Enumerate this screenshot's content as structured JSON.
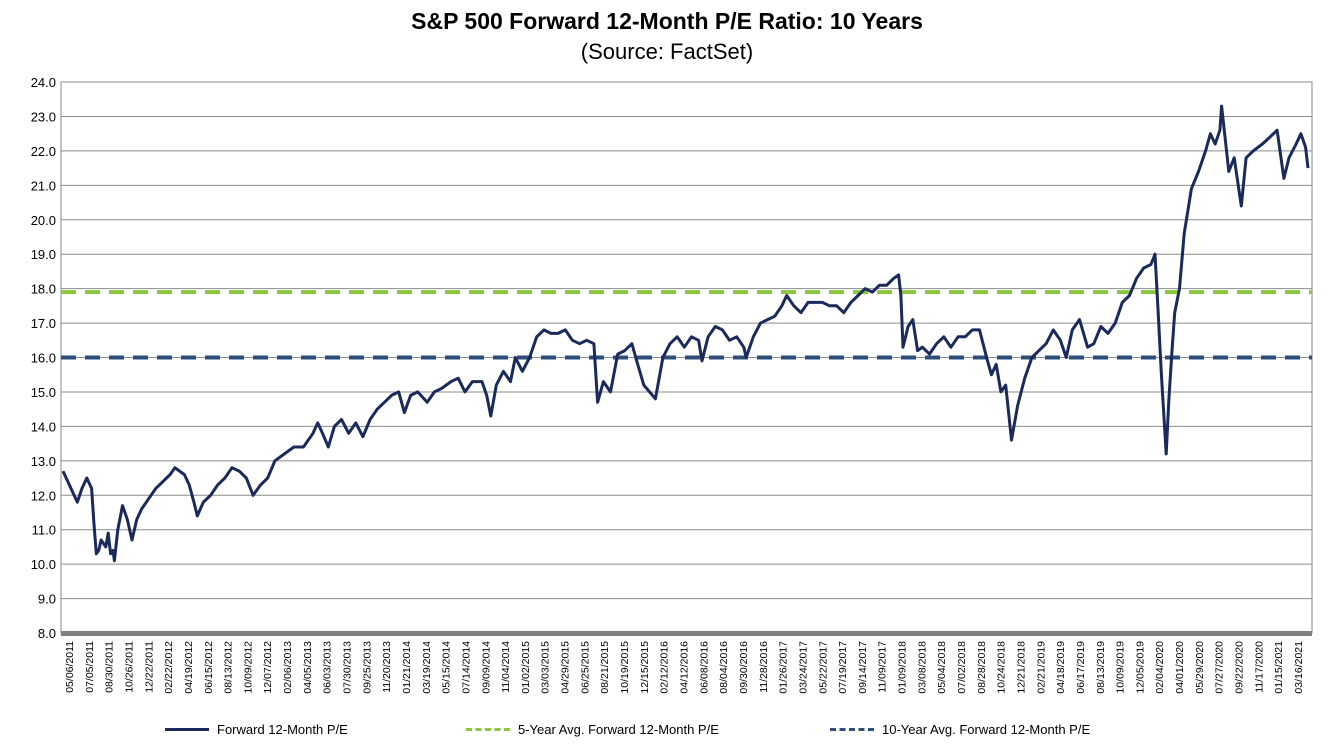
{
  "chart_data": {
    "type": "line",
    "title": "S&P 500 Forward 12-Month P/E Ratio: 10 Years",
    "subtitle": "(Source: FactSet)",
    "xlabel": "",
    "ylabel": "",
    "ylim": [
      8.0,
      24.0
    ],
    "yticks": [
      "8.0",
      "9.0",
      "10.0",
      "11.0",
      "12.0",
      "13.0",
      "14.0",
      "15.0",
      "16.0",
      "17.0",
      "18.0",
      "19.0",
      "20.0",
      "21.0",
      "22.0",
      "23.0",
      "24.0"
    ],
    "grid": true,
    "legend_position": "bottom",
    "x_tick_labels": [
      "05/06/2011",
      "07/05/2011",
      "08/30/2011",
      "10/26/2011",
      "12/22/2011",
      "02/22/2012",
      "04/19/2012",
      "06/15/2012",
      "08/13/2012",
      "10/09/2012",
      "12/07/2012",
      "02/06/2013",
      "04/05/2013",
      "06/03/2013",
      "07/30/2013",
      "09/25/2013",
      "11/20/2013",
      "01/21/2014",
      "03/19/2014",
      "05/15/2014",
      "07/14/2014",
      "09/09/2014",
      "11/04/2014",
      "01/02/2015",
      "03/03/2015",
      "04/29/2015",
      "06/25/2015",
      "08/21/2015",
      "10/19/2015",
      "12/15/2015",
      "02/12/2016",
      "04/12/2016",
      "06/08/2016",
      "08/04/2016",
      "09/30/2016",
      "11/28/2016",
      "01/26/2017",
      "03/24/2017",
      "05/22/2017",
      "07/19/2017",
      "09/14/2017",
      "11/09/2017",
      "01/09/2018",
      "03/08/2018",
      "05/04/2018",
      "07/02/2018",
      "08/28/2018",
      "10/24/2018",
      "12/21/2018",
      "02/21/2019",
      "04/18/2019",
      "06/17/2019",
      "08/13/2019",
      "10/09/2019",
      "12/05/2019",
      "02/04/2020",
      "04/01/2020",
      "05/29/2020",
      "07/27/2020",
      "09/22/2020",
      "11/17/2020",
      "01/15/2021",
      "03/16/2021"
    ],
    "series": [
      {
        "name": "Forward 12-Month P/E",
        "color": "#1a2a5a",
        "style": "solid",
        "points": [
          [
            "2011-05-06",
            12.7
          ],
          [
            "2011-05-20",
            12.4
          ],
          [
            "2011-06-03",
            12.1
          ],
          [
            "2011-06-17",
            11.8
          ],
          [
            "2011-07-01",
            12.2
          ],
          [
            "2011-07-15",
            12.5
          ],
          [
            "2011-07-29",
            12.2
          ],
          [
            "2011-08-05",
            11.2
          ],
          [
            "2011-08-12",
            10.3
          ],
          [
            "2011-08-19",
            10.4
          ],
          [
            "2011-08-26",
            10.7
          ],
          [
            "2011-09-09",
            10.5
          ],
          [
            "2011-09-16",
            10.9
          ],
          [
            "2011-09-23",
            10.3
          ],
          [
            "2011-09-30",
            10.4
          ],
          [
            "2011-10-04",
            10.1
          ],
          [
            "2011-10-14",
            11.0
          ],
          [
            "2011-10-28",
            11.7
          ],
          [
            "2011-11-11",
            11.3
          ],
          [
            "2011-11-25",
            10.7
          ],
          [
            "2011-12-09",
            11.3
          ],
          [
            "2011-12-23",
            11.6
          ],
          [
            "2012-01-13",
            11.9
          ],
          [
            "2012-02-03",
            12.2
          ],
          [
            "2012-02-24",
            12.4
          ],
          [
            "2012-03-16",
            12.6
          ],
          [
            "2012-03-30",
            12.8
          ],
          [
            "2012-04-13",
            12.7
          ],
          [
            "2012-04-27",
            12.6
          ],
          [
            "2012-05-11",
            12.3
          ],
          [
            "2012-05-25",
            11.8
          ],
          [
            "2012-06-04",
            11.4
          ],
          [
            "2012-06-22",
            11.8
          ],
          [
            "2012-07-13",
            12.0
          ],
          [
            "2012-08-03",
            12.3
          ],
          [
            "2012-08-24",
            12.5
          ],
          [
            "2012-09-14",
            12.8
          ],
          [
            "2012-10-05",
            12.7
          ],
          [
            "2012-10-26",
            12.5
          ],
          [
            "2012-11-15",
            12.0
          ],
          [
            "2012-12-07",
            12.3
          ],
          [
            "2012-12-28",
            12.5
          ],
          [
            "2013-01-18",
            13.0
          ],
          [
            "2013-02-15",
            13.2
          ],
          [
            "2013-03-15",
            13.4
          ],
          [
            "2013-04-12",
            13.4
          ],
          [
            "2013-05-10",
            13.8
          ],
          [
            "2013-05-24",
            14.1
          ],
          [
            "2013-06-07",
            13.8
          ],
          [
            "2013-06-24",
            13.4
          ],
          [
            "2013-07-12",
            14.0
          ],
          [
            "2013-08-02",
            14.2
          ],
          [
            "2013-08-23",
            13.8
          ],
          [
            "2013-09-13",
            14.1
          ],
          [
            "2013-10-04",
            13.7
          ],
          [
            "2013-10-25",
            14.2
          ],
          [
            "2013-11-15",
            14.5
          ],
          [
            "2013-12-06",
            14.7
          ],
          [
            "2013-12-27",
            14.9
          ],
          [
            "2014-01-17",
            15.0
          ],
          [
            "2014-02-03",
            14.4
          ],
          [
            "2014-02-21",
            14.9
          ],
          [
            "2014-03-14",
            15.0
          ],
          [
            "2014-04-11",
            14.7
          ],
          [
            "2014-05-02",
            15.0
          ],
          [
            "2014-05-23",
            15.1
          ],
          [
            "2014-06-20",
            15.3
          ],
          [
            "2014-07-11",
            15.4
          ],
          [
            "2014-07-31",
            15.0
          ],
          [
            "2014-08-22",
            15.3
          ],
          [
            "2014-09-19",
            15.3
          ],
          [
            "2014-10-03",
            14.9
          ],
          [
            "2014-10-15",
            14.3
          ],
          [
            "2014-10-31",
            15.2
          ],
          [
            "2014-11-21",
            15.6
          ],
          [
            "2014-12-12",
            15.3
          ],
          [
            "2014-12-26",
            16.0
          ],
          [
            "2015-01-16",
            15.6
          ],
          [
            "2015-02-06",
            16.0
          ],
          [
            "2015-02-27",
            16.6
          ],
          [
            "2015-03-20",
            16.8
          ],
          [
            "2015-04-10",
            16.7
          ],
          [
            "2015-05-01",
            16.7
          ],
          [
            "2015-05-22",
            16.8
          ],
          [
            "2015-06-12",
            16.5
          ],
          [
            "2015-07-03",
            16.4
          ],
          [
            "2015-07-24",
            16.5
          ],
          [
            "2015-08-14",
            16.4
          ],
          [
            "2015-08-25",
            14.7
          ],
          [
            "2015-09-11",
            15.3
          ],
          [
            "2015-10-02",
            15.0
          ],
          [
            "2015-10-23",
            16.1
          ],
          [
            "2015-11-13",
            16.2
          ],
          [
            "2015-12-04",
            16.4
          ],
          [
            "2015-12-18",
            15.9
          ],
          [
            "2016-01-08",
            15.2
          ],
          [
            "2016-02-11",
            14.8
          ],
          [
            "2016-03-04",
            16.0
          ],
          [
            "2016-03-25",
            16.4
          ],
          [
            "2016-04-15",
            16.6
          ],
          [
            "2016-05-06",
            16.3
          ],
          [
            "2016-05-27",
            16.6
          ],
          [
            "2016-06-17",
            16.5
          ],
          [
            "2016-06-27",
            15.9
          ],
          [
            "2016-07-15",
            16.6
          ],
          [
            "2016-08-05",
            16.9
          ],
          [
            "2016-08-26",
            16.8
          ],
          [
            "2016-09-16",
            16.5
          ],
          [
            "2016-10-07",
            16.6
          ],
          [
            "2016-10-28",
            16.3
          ],
          [
            "2016-11-04",
            16.0
          ],
          [
            "2016-11-25",
            16.6
          ],
          [
            "2016-12-16",
            17.0
          ],
          [
            "2017-01-06",
            17.1
          ],
          [
            "2017-01-27",
            17.2
          ],
          [
            "2017-02-17",
            17.5
          ],
          [
            "2017-03-03",
            17.8
          ],
          [
            "2017-03-24",
            17.5
          ],
          [
            "2017-04-14",
            17.3
          ],
          [
            "2017-05-05",
            17.6
          ],
          [
            "2017-05-26",
            17.6
          ],
          [
            "2017-06-16",
            17.6
          ],
          [
            "2017-07-07",
            17.5
          ],
          [
            "2017-07-28",
            17.5
          ],
          [
            "2017-08-18",
            17.3
          ],
          [
            "2017-09-08",
            17.6
          ],
          [
            "2017-09-29",
            17.8
          ],
          [
            "2017-10-20",
            18.0
          ],
          [
            "2017-11-10",
            17.9
          ],
          [
            "2017-12-01",
            18.1
          ],
          [
            "2017-12-22",
            18.1
          ],
          [
            "2018-01-12",
            18.3
          ],
          [
            "2018-01-26",
            18.4
          ],
          [
            "2018-02-02",
            17.8
          ],
          [
            "2018-02-08",
            16.3
          ],
          [
            "2018-02-23",
            16.9
          ],
          [
            "2018-03-09",
            17.1
          ],
          [
            "2018-03-23",
            16.2
          ],
          [
            "2018-04-06",
            16.3
          ],
          [
            "2018-04-27",
            16.1
          ],
          [
            "2018-05-18",
            16.4
          ],
          [
            "2018-06-08",
            16.6
          ],
          [
            "2018-06-29",
            16.3
          ],
          [
            "2018-07-20",
            16.6
          ],
          [
            "2018-08-10",
            16.6
          ],
          [
            "2018-08-31",
            16.8
          ],
          [
            "2018-09-21",
            16.8
          ],
          [
            "2018-10-12",
            16.0
          ],
          [
            "2018-10-26",
            15.5
          ],
          [
            "2018-11-09",
            15.8
          ],
          [
            "2018-11-23",
            15.0
          ],
          [
            "2018-12-07",
            15.2
          ],
          [
            "2018-12-24",
            13.6
          ],
          [
            "2019-01-11",
            14.6
          ],
          [
            "2019-02-01",
            15.4
          ],
          [
            "2019-02-22",
            16.0
          ],
          [
            "2019-03-15",
            16.2
          ],
          [
            "2019-04-05",
            16.4
          ],
          [
            "2019-04-26",
            16.8
          ],
          [
            "2019-05-17",
            16.5
          ],
          [
            "2019-06-03",
            16.0
          ],
          [
            "2019-06-21",
            16.8
          ],
          [
            "2019-07-12",
            17.1
          ],
          [
            "2019-08-05",
            16.3
          ],
          [
            "2019-08-23",
            16.4
          ],
          [
            "2019-09-13",
            16.9
          ],
          [
            "2019-10-04",
            16.7
          ],
          [
            "2019-10-25",
            17.0
          ],
          [
            "2019-11-15",
            17.6
          ],
          [
            "2019-12-06",
            17.8
          ],
          [
            "2019-12-27",
            18.3
          ],
          [
            "2020-01-17",
            18.6
          ],
          [
            "2020-02-07",
            18.7
          ],
          [
            "2020-02-19",
            19.0
          ],
          [
            "2020-02-28",
            17.4
          ],
          [
            "2020-03-09",
            15.5
          ],
          [
            "2020-03-23",
            13.2
          ],
          [
            "2020-03-31",
            14.8
          ],
          [
            "2020-04-09",
            16.2
          ],
          [
            "2020-04-17",
            17.3
          ],
          [
            "2020-05-01",
            18.0
          ],
          [
            "2020-05-15",
            19.6
          ],
          [
            "2020-06-05",
            20.9
          ],
          [
            "2020-06-26",
            21.4
          ],
          [
            "2020-07-17",
            22.0
          ],
          [
            "2020-07-31",
            22.5
          ],
          [
            "2020-08-14",
            22.2
          ],
          [
            "2020-08-28",
            22.6
          ],
          [
            "2020-09-02",
            23.3
          ],
          [
            "2020-09-23",
            21.4
          ],
          [
            "2020-10-09",
            21.8
          ],
          [
            "2020-10-30",
            20.4
          ],
          [
            "2020-11-13",
            21.8
          ],
          [
            "2020-12-04",
            22.0
          ],
          [
            "2020-12-31",
            22.2
          ],
          [
            "2021-01-22",
            22.4
          ],
          [
            "2021-02-12",
            22.6
          ],
          [
            "2021-03-04",
            21.2
          ],
          [
            "2021-03-19",
            21.8
          ],
          [
            "2021-04-09",
            22.2
          ],
          [
            "2021-04-23",
            22.5
          ],
          [
            "2021-05-07",
            22.1
          ],
          [
            "2021-05-14",
            21.5
          ]
        ]
      },
      {
        "name": "5-Year Avg. Forward 12-Month P/E",
        "color": "#8dc63f",
        "style": "dashed",
        "value": 17.9
      },
      {
        "name": "10-Year Avg. Forward 12-Month P/E",
        "color": "#2f4f7a",
        "style": "dashed",
        "value": 16.0
      }
    ]
  }
}
